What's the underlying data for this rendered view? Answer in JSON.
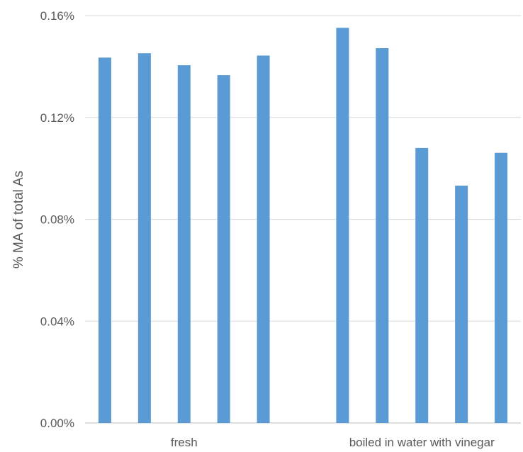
{
  "chart_data": {
    "type": "bar",
    "ylabel": "% MA of total As",
    "ylim": [
      0,
      0.16
    ],
    "yticks": [
      "0.00%",
      "0.04%",
      "0.08%",
      "0.12%",
      "0.16%"
    ],
    "ytick_values": [
      0,
      0.04,
      0.08,
      0.12,
      0.16
    ],
    "grid": true,
    "bar_color": "#5b9bd5",
    "groups": [
      {
        "label": "fresh",
        "values": [
          0.1435,
          0.1452,
          0.1405,
          0.1366,
          0.1443
        ]
      },
      {
        "label": "boiled in water with vinegar",
        "values": [
          0.1552,
          0.1472,
          0.108,
          0.0932,
          0.1061
        ]
      }
    ]
  }
}
